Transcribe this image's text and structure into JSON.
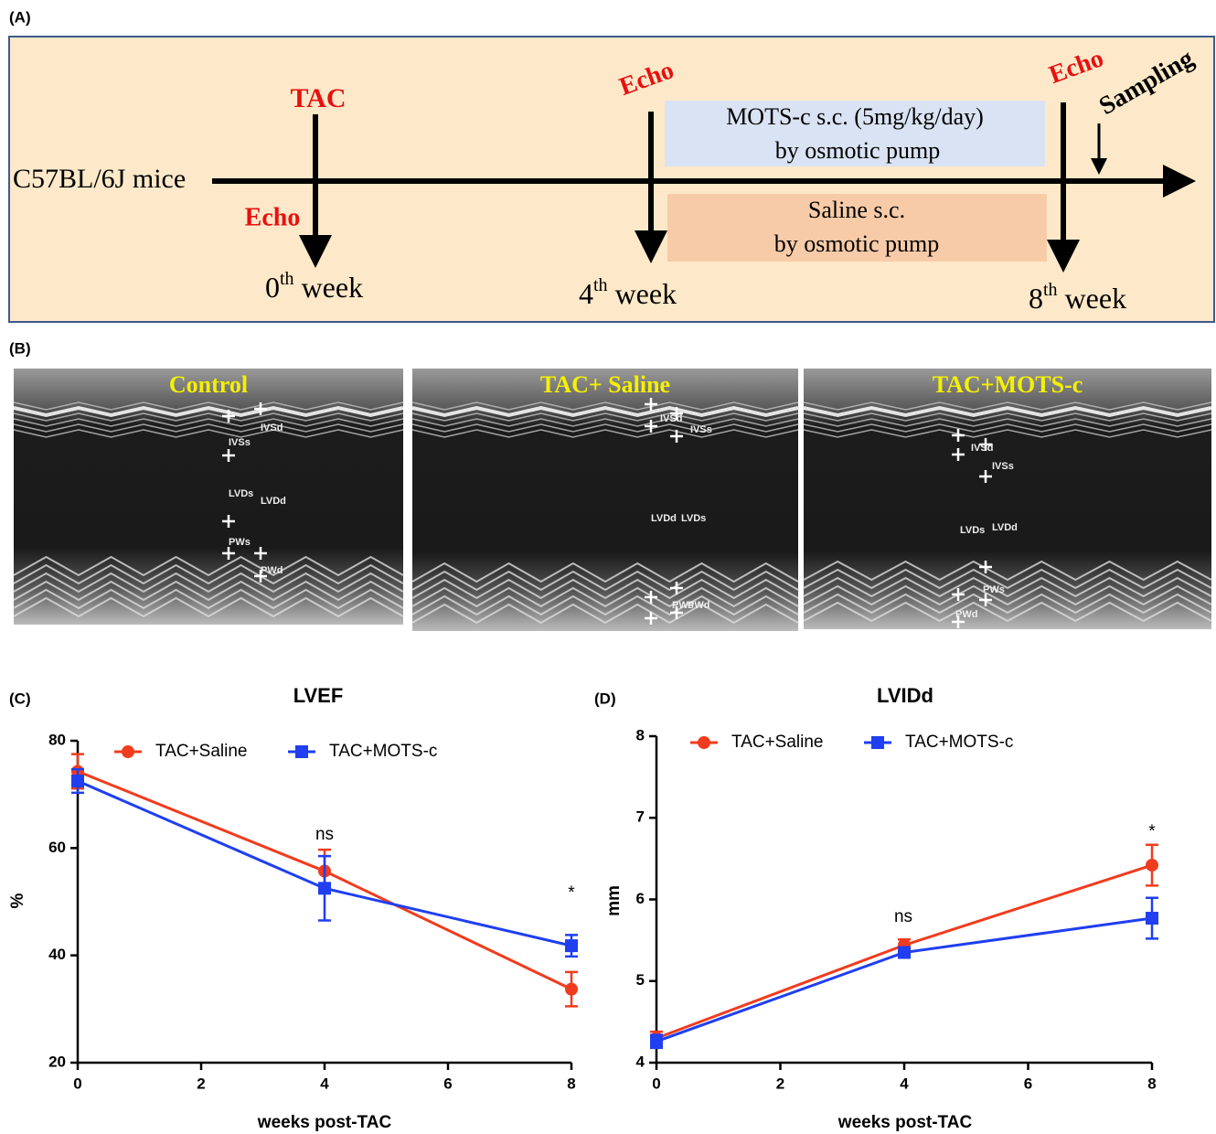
{
  "panel_a": {
    "label": "(A)",
    "subject": "C57BL/6J mice",
    "tac": "TAC",
    "echo": [
      "Echo",
      "Echo",
      "Echo"
    ],
    "sampling": "Sampling",
    "mots_box": [
      "MOTS-c s.c. (5mg/kg/day)",
      "by osmotic pump"
    ],
    "saline_box": [
      "Saline s.c.",
      "by osmotic pump"
    ],
    "weeks": [
      {
        "num": "0",
        "sup": "th",
        "word": "week"
      },
      {
        "num": "4",
        "sup": "th",
        "word": "week"
      },
      {
        "num": "8",
        "sup": "th",
        "word": "week"
      }
    ]
  },
  "panel_b": {
    "label": "(B)",
    "images": [
      {
        "title": "Control",
        "labels": [
          "IVSd",
          "IVSs",
          "LVDs",
          "LVDd",
          "PWs",
          "PWd"
        ]
      },
      {
        "title": "TAC+ Saline",
        "labels": [
          "IVSd",
          "IVSs",
          "LVDd",
          "LVDs",
          "PWs",
          "PWd"
        ]
      },
      {
        "title": "TAC+MOTS-c",
        "labels": [
          "IVSd",
          "IVSs",
          "LVDs",
          "LVDd",
          "PWs",
          "PWd"
        ]
      }
    ]
  },
  "chart_data": [
    {
      "type": "line",
      "panel_label": "(C)",
      "title": "LVEF",
      "x_label": "weeks post-TAC",
      "y_label": "%",
      "x": [
        0,
        4,
        8
      ],
      "series": [
        {
          "name": "TAC+Saline",
          "color": "#f03c1e",
          "marker": "circle",
          "values": [
            74.3,
            55.7,
            33.7
          ],
          "errors": [
            3.2,
            4.0,
            3.2
          ]
        },
        {
          "name": "TAC+MOTS-c",
          "color": "#1f3ff0",
          "marker": "square",
          "values": [
            72.5,
            52.5,
            41.8
          ],
          "errors": [
            2.2,
            6.0,
            2.0
          ]
        }
      ],
      "annotations": [
        "ns",
        "*"
      ],
      "xlim": [
        0,
        8
      ],
      "xticks": [
        0,
        2,
        4,
        6,
        8
      ],
      "ylim": [
        20,
        80
      ],
      "yticks": [
        20,
        40,
        60,
        80
      ]
    },
    {
      "type": "line",
      "panel_label": "(D)",
      "title": "LVIDd",
      "x_label": "weeks post-TAC",
      "y_label": "mm",
      "x": [
        0,
        4,
        8
      ],
      "series": [
        {
          "name": "TAC+Saline",
          "color": "#f03c1e",
          "marker": "circle",
          "values": [
            4.3,
            5.44,
            6.42
          ],
          "errors": [
            0.08,
            0.07,
            0.25
          ]
        },
        {
          "name": "TAC+MOTS-c",
          "color": "#1f3ff0",
          "marker": "square",
          "values": [
            4.26,
            5.35,
            5.77
          ],
          "errors": [
            0.08,
            0.05,
            0.25
          ]
        }
      ],
      "annotations": [
        "ns",
        "*"
      ],
      "xlim": [
        0,
        8
      ],
      "xticks": [
        0,
        2,
        4,
        6,
        8
      ],
      "ylim": [
        4,
        8
      ],
      "yticks": [
        4,
        5,
        6,
        7,
        8
      ]
    }
  ]
}
